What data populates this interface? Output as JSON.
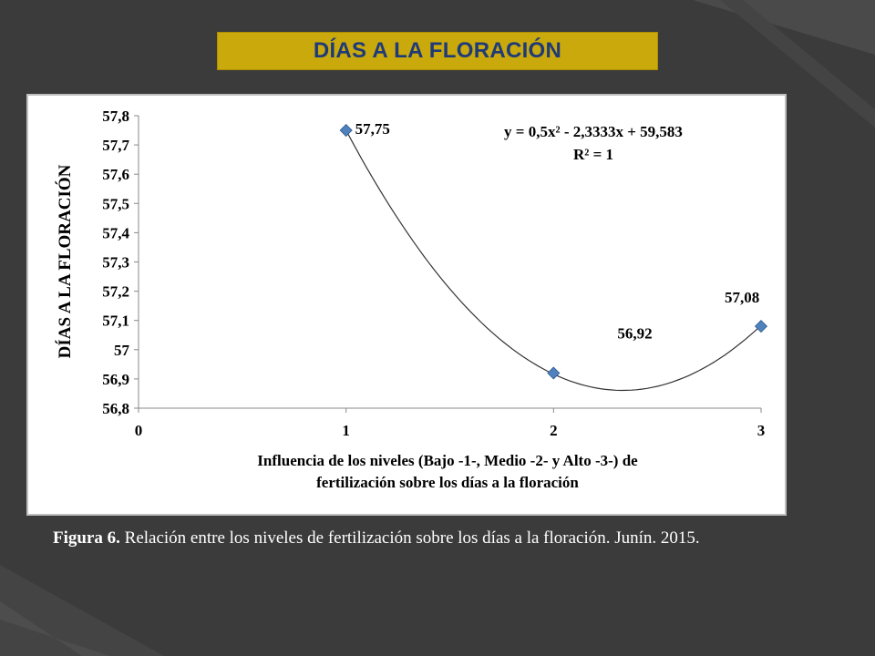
{
  "slide": {
    "title": "DÍAS A LA FLORACIÓN",
    "caption_label": "Figura 6.",
    "caption_text": " Relación entre los niveles de fertilización sobre los días a la floración. Junín. 2015.",
    "colors": {
      "background": "#3b3b3b",
      "banner": "#c9a90b",
      "title_text": "#1f3a78",
      "marker": "#4f81bd",
      "curve": "#333333"
    }
  },
  "chart_data": {
    "type": "scatter",
    "title": "",
    "xlabel_lines": [
      "Influencia  de los niveles (Bajo -1-, Medio -2- y Alto -3-) de",
      "fertilización  sobre los días a la floración"
    ],
    "ylabel": "DÍAS A LA FLORACIÓN",
    "xlim": [
      0,
      3
    ],
    "ylim": [
      56.8,
      57.8
    ],
    "x_ticks": [
      "0",
      "1",
      "2",
      "3"
    ],
    "y_ticks": [
      "56,8",
      "56,9",
      "57",
      "57,1",
      "57,2",
      "57,3",
      "57,4",
      "57,5",
      "57,6",
      "57,7",
      "57,8"
    ],
    "points": [
      {
        "x": 1,
        "y": 57.75,
        "label": "57,75"
      },
      {
        "x": 2,
        "y": 56.92,
        "label": "56,92"
      },
      {
        "x": 3,
        "y": 57.08,
        "label": "57,08"
      }
    ],
    "trendline": {
      "type": "polynomial",
      "coefficients": [
        0.5,
        -2.3333,
        59.583
      ],
      "equation": "y = 0,5x² - 2,3333x + 59,583",
      "r_squared": "R² = 1"
    },
    "grid": false,
    "legend": "none"
  }
}
